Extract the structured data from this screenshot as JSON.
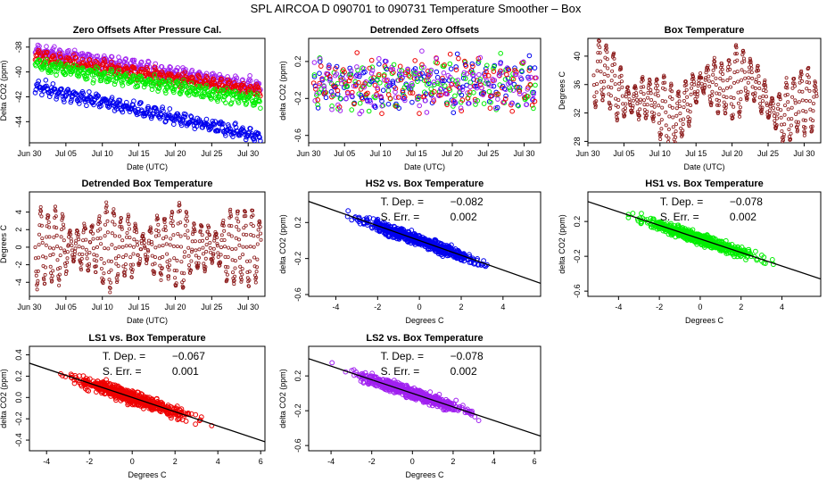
{
  "page_title": "SPL   AIRCOA D   090701 to 090731   Temperature Smoother – Box",
  "colors": {
    "HS2": "#0000ee",
    "HS1": "#00ee00",
    "LS1": "#ee0000",
    "LS2": "#a020f0",
    "box": "#8b1a1a",
    "fit_line": "#000000"
  },
  "chart_data": [
    {
      "id": "zero-offsets",
      "type": "scatter",
      "title": "Zero Offsets After Pressure Cal.",
      "xlabel": "Date (UTC)",
      "ylabel": "Delta CO2 (ppm)",
      "x_ticks": [
        "Jun 30",
        "Jul 05",
        "Jul 10",
        "Jul 15",
        "Jul 20",
        "Jul 25",
        "Jul 30"
      ],
      "y_ticks": [
        "-38",
        "-40",
        "-42",
        "-44"
      ],
      "xlim_days": [
        0.0,
        32.3
      ],
      "ylim": [
        -45.7,
        -37.3
      ],
      "series": [
        {
          "name": "LS2",
          "color": "#a020f0",
          "start": -38.3,
          "end": -41.2
        },
        {
          "name": "LS1",
          "color": "#ee0000",
          "start": -38.8,
          "end": -41.6
        },
        {
          "name": "HS1",
          "color": "#00ee00",
          "start": -39.4,
          "end": -42.3
        },
        {
          "name": "HS2",
          "color": "#0000ee",
          "start": -41.2,
          "end": -45.2
        }
      ]
    },
    {
      "id": "detrended-zero",
      "type": "scatter",
      "title": "Detrended Zero Offsets",
      "xlabel": "Date (UTC)",
      "ylabel": "delta CO2 (ppm)",
      "x_ticks": [
        "Jun 30",
        "Jul 05",
        "Jul 10",
        "Jul 15",
        "Jul 20",
        "Jul 25",
        "Jul 30"
      ],
      "y_ticks": [
        "0.2",
        "-0.2",
        "-0.6"
      ],
      "xlim_days": [
        0.0,
        32.3
      ],
      "ylim": [
        -0.68,
        0.45
      ],
      "series": [
        "HS2",
        "HS1",
        "LS1",
        "LS2"
      ]
    },
    {
      "id": "box-temperature",
      "type": "line",
      "title": "Box Temperature",
      "xlabel": "Date (UTC)",
      "ylabel": "Degrees C",
      "x_ticks": [
        "Jun 30",
        "Jul 05",
        "Jul 10",
        "Jul 15",
        "Jul 20",
        "Jul 25",
        "Jul 30"
      ],
      "y_ticks": [
        "28",
        "32",
        "36",
        "40"
      ],
      "xlim_days": [
        0.0,
        32.3
      ],
      "ylim": [
        27.8,
        42.5
      ]
    },
    {
      "id": "detrended-box",
      "type": "line",
      "title": "Detrended Box Temperature",
      "xlabel": "Date (UTC)",
      "ylabel": "Degrees C",
      "x_ticks": [
        "Jun 30",
        "Jul 05",
        "Jul 10",
        "Jul 15",
        "Jul 20",
        "Jul 25",
        "Jul 30"
      ],
      "y_ticks": [
        "4",
        "2",
        "0",
        "-2",
        "-4"
      ],
      "xlim_days": [
        0.0,
        32.3
      ],
      "ylim": [
        -5.6,
        6.3
      ]
    },
    {
      "id": "hs2-vs-box",
      "type": "scatter",
      "series_color": "#0000ee",
      "title": "HS2 vs. Box Temperature",
      "xlabel": "Degrees C",
      "ylabel": "delta CO2 (ppm)",
      "x_ticks": [
        "-4",
        "-2",
        "0",
        "2",
        "4"
      ],
      "y_ticks": [
        "0.2",
        "-0.2",
        "-0.6"
      ],
      "xlim": [
        -5.3,
        5.8
      ],
      "ylim": [
        -0.62,
        0.54
      ],
      "fit": {
        "slope": -0.082,
        "intercept": 0.0
      },
      "annot": {
        "dep_label": "T. Dep. =",
        "dep_value": "−0.082",
        "err_label": "S. Err. =",
        "err_value": "0.002"
      }
    },
    {
      "id": "hs1-vs-box",
      "type": "scatter",
      "series_color": "#00ee00",
      "title": "HS1 vs. Box Temperature",
      "xlabel": "Degrees C",
      "ylabel": "delta CO2 (ppm)",
      "x_ticks": [
        "-4",
        "-2",
        "0",
        "2",
        "4"
      ],
      "y_ticks": [
        "0.2",
        "-0.2",
        "-0.6"
      ],
      "xlim": [
        -5.5,
        5.9
      ],
      "ylim": [
        -0.66,
        0.54
      ],
      "fit": {
        "slope": -0.078,
        "intercept": 0.0
      },
      "annot": {
        "dep_label": "T. Dep. =",
        "dep_value": "−0.078",
        "err_label": "S. Err. =",
        "err_value": "0.002"
      }
    },
    {
      "id": "ls1-vs-box",
      "type": "scatter",
      "series_color": "#ee0000",
      "title": "LS1 vs. Box Temperature",
      "xlabel": "Degrees C",
      "ylabel": "delta CO2 (ppm)",
      "x_ticks": [
        "-4",
        "-2",
        "0",
        "2",
        "4",
        "6"
      ],
      "y_ticks": [
        "0.4",
        "0.2",
        "0.0",
        "-0.2",
        "-0.4"
      ],
      "xlim": [
        -4.8,
        6.2
      ],
      "ylim": [
        -0.5,
        0.48
      ],
      "fit": {
        "slope": -0.067,
        "intercept": 0.0
      },
      "annot": {
        "dep_label": "T. Dep. =",
        "dep_value": "−0.067",
        "err_label": "S. Err. =",
        "err_value": "0.001"
      }
    },
    {
      "id": "ls2-vs-box",
      "type": "scatter",
      "series_color": "#a020f0",
      "title": "LS2 vs. Box Temperature",
      "xlabel": "Degrees C",
      "ylabel": "delta CO2 (ppm)",
      "x_ticks": [
        "-4",
        "-2",
        "0",
        "2",
        "4",
        "6"
      ],
      "y_ticks": [
        "0.2",
        "-0.2",
        "-0.6"
      ],
      "xlim": [
        -5.1,
        6.3
      ],
      "ylim": [
        -0.66,
        0.54
      ],
      "fit": {
        "slope": -0.078,
        "intercept": 0.0
      },
      "annot": {
        "dep_label": "T. Dep. =",
        "dep_value": "−0.078",
        "err_label": "S. Err. =",
        "err_value": "0.002"
      }
    }
  ]
}
